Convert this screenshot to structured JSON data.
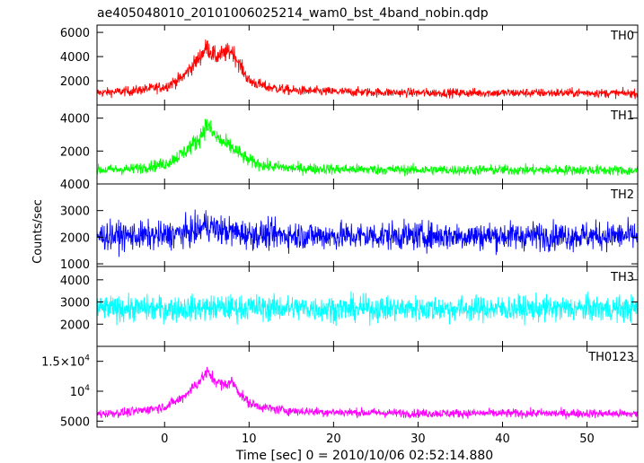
{
  "title": "ae405048010_20101006025214_wam0_bst_4band_nobin.qdp",
  "xlabel": "Time [sec] 0 = 2010/10/06 02:52:14.880",
  "ylabel": "Counts/sec",
  "chart_data": {
    "type": "line",
    "x_range": [
      -8,
      56
    ],
    "x_ticks": [
      0,
      10,
      20,
      30,
      40,
      50
    ],
    "x_tick_labels": [
      "0",
      "10",
      "20",
      "30",
      "40",
      "50"
    ],
    "panels": [
      {
        "name": "TH0",
        "color": "#ff0000",
        "y_range": [
          0,
          6600
        ],
        "y_ticks": [
          2000,
          4000,
          6000
        ],
        "y_tick_labels": [
          "2000",
          "4000",
          "6000"
        ],
        "x": [
          -8,
          -4,
          0,
          2,
          4,
          5,
          6,
          7,
          8,
          9,
          10,
          12,
          15,
          20,
          30,
          40,
          50,
          56
        ],
        "y": [
          1000,
          1150,
          1500,
          2200,
          3800,
          4800,
          4000,
          4200,
          4500,
          3200,
          2000,
          1500,
          1200,
          1100,
          1000,
          1000,
          1000,
          950
        ],
        "noise": 350
      },
      {
        "name": "TH1",
        "color": "#00ff00",
        "y_range": [
          0,
          4800
        ],
        "y_ticks": [
          2000,
          4000
        ],
        "y_tick_labels": [
          "2000",
          "4000"
        ],
        "x": [
          -8,
          -4,
          0,
          2,
          4,
          5,
          6,
          7,
          8,
          9,
          10,
          12,
          15,
          20,
          30,
          40,
          50,
          56
        ],
        "y": [
          850,
          900,
          1200,
          1800,
          2700,
          3600,
          2900,
          2500,
          2200,
          1800,
          1400,
          1100,
          950,
          900,
          850,
          850,
          850,
          800
        ],
        "noise": 300
      },
      {
        "name": "TH2",
        "color": "#0000ff",
        "y_range": [
          900,
          4000
        ],
        "y_ticks": [
          1000,
          2000,
          3000,
          4000
        ],
        "y_tick_labels": [
          "1000",
          "2000",
          "3000",
          "4000"
        ],
        "x": [
          -8,
          0,
          4,
          5,
          6,
          10,
          20,
          30,
          40,
          50,
          56
        ],
        "y": [
          2050,
          2050,
          2250,
          2500,
          2300,
          2100,
          2050,
          2050,
          2050,
          2050,
          2050
        ],
        "noise": 500
      },
      {
        "name": "TH3",
        "color": "#00ffff",
        "y_range": [
          1000,
          4600
        ],
        "y_ticks": [
          2000,
          3000,
          4000
        ],
        "y_tick_labels": [
          "2000",
          "3000",
          "4000"
        ],
        "x": [
          -8,
          0,
          10,
          20,
          30,
          40,
          50,
          56
        ],
        "y": [
          2700,
          2700,
          2750,
          2700,
          2700,
          2700,
          2700,
          2700
        ],
        "noise": 550
      },
      {
        "name": "TH0123",
        "color": "#ff00ff",
        "y_range": [
          4000,
          17500
        ],
        "y_ticks": [
          5000,
          10000,
          15000
        ],
        "y_tick_labels": [
          "5000",
          "10^4",
          "1.5×10^4"
        ],
        "x": [
          -8,
          -4,
          0,
          2,
          4,
          5,
          6,
          7,
          8,
          9,
          10,
          12,
          15,
          20,
          30,
          40,
          50,
          56
        ],
        "y": [
          6200,
          6500,
          7400,
          8800,
          11500,
          13200,
          11800,
          11000,
          11600,
          9500,
          8000,
          7200,
          6700,
          6500,
          6300,
          6300,
          6300,
          6200
        ],
        "noise": 700
      }
    ]
  }
}
